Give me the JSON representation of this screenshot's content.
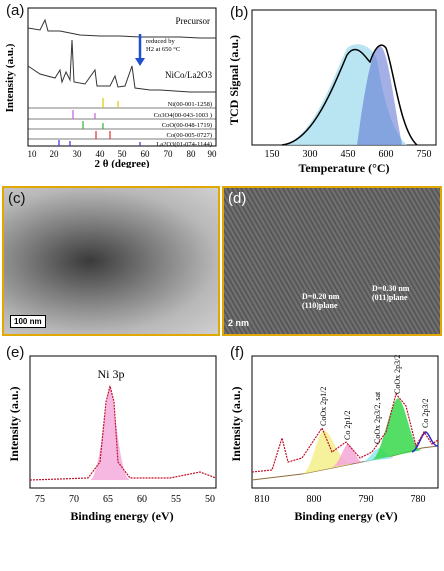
{
  "panel_a": {
    "label": "(a)",
    "ylabel": "Intensity (a.u.)",
    "xlabel": "2 θ (degree)",
    "xticks": [
      "10",
      "20",
      "30",
      "40",
      "50",
      "60",
      "70",
      "80",
      "90"
    ],
    "precursor": "Precursor",
    "reduced_line1": "reduced by",
    "reduced_line2": "H2 at 650 °C",
    "product": "NiCo/La2O3",
    "refs": [
      "Ni(00-001-1258)",
      "Co3O4(00-043-1003 )",
      "CoO(00-048-1719)",
      "Co(00-005-0727)",
      "La2O3(01-074-1144)"
    ]
  },
  "panel_b": {
    "label": "(b)",
    "ylabel": "TCD Signal (a.u.)",
    "xlabel": "Temperature (°C)",
    "xticks": [
      "150",
      "300",
      "450",
      "600",
      "750"
    ]
  },
  "panel_c": {
    "label": "(c)",
    "scale": "100 nm"
  },
  "panel_d": {
    "label": "(d)",
    "scale": "2 nm",
    "annot1_l1": "D=0.20 nm",
    "annot1_l2": "(110)plane",
    "annot2_l1": "D=0.30 nm",
    "annot2_l2": "(011)plane"
  },
  "panel_e": {
    "label": "(e)",
    "ylabel": "Intensity (a.u.)",
    "xlabel": "Binding energy (eV)",
    "peak": "Ni 3p",
    "xticks": [
      "75",
      "70",
      "65",
      "60",
      "55",
      "50"
    ]
  },
  "panel_f": {
    "label": "(f)",
    "ylabel": "Intensity (a.u.)",
    "xlabel": "Binding energy (eV)",
    "xticks": [
      "810",
      "800",
      "790",
      "780"
    ],
    "peaks": [
      "CoOx 2p1/2",
      "Co 2p1/2",
      "CoOx 2p3/2, sat",
      "CoOx 2p3/2",
      "Co 2p3/2"
    ]
  },
  "colors": {
    "accent": "#e0a800",
    "tpr_fill": "#a8dff0",
    "tpr_fill2": "#5a6fd0",
    "xps_pink": "#f4a6d8",
    "xps_green": "#37d84a",
    "xps_yellow": "#f5f08a",
    "xps_blue": "#2a2ad0",
    "xps_cyan": "#8fe8f0"
  }
}
